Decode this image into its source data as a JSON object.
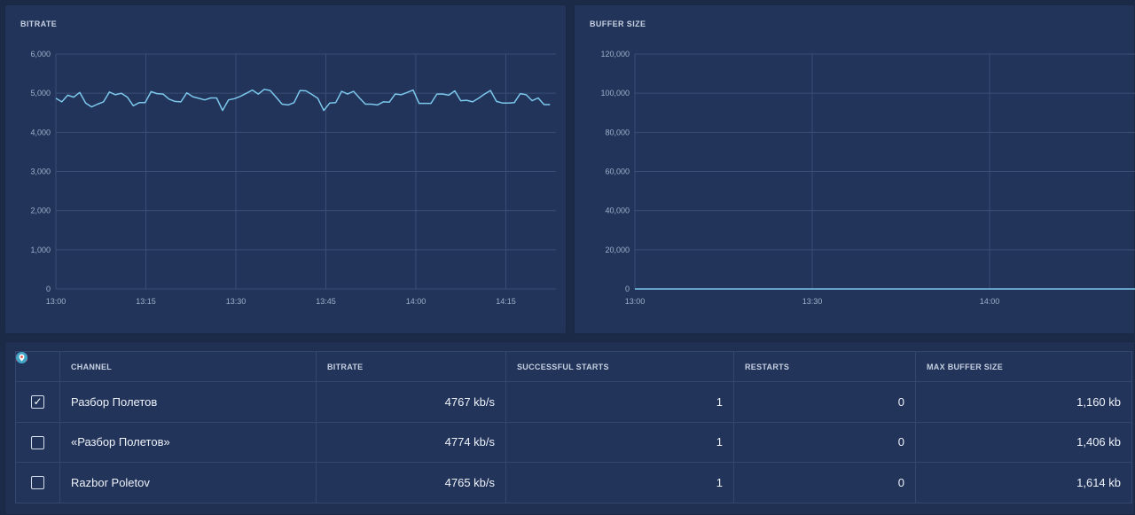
{
  "bitrate_panel": {
    "title": "BITRATE"
  },
  "buffer_panel": {
    "title": "BUFFER SIZE"
  },
  "chart_data": [
    {
      "type": "line",
      "title": "BITRATE",
      "ylim": [
        0,
        6000
      ],
      "yticks": [
        "0",
        "1,000",
        "2,000",
        "3,000",
        "4,000",
        "5,000",
        "6,000"
      ],
      "xticks": [
        "13:00",
        "13:15",
        "13:30",
        "13:45",
        "14:00",
        "14:15"
      ],
      "xlim": [
        0,
        84
      ],
      "series": [
        {
          "color": "#7cc7ec",
          "x": [
            0,
            1,
            2,
            3,
            4,
            5,
            6,
            7,
            8,
            9,
            10,
            11,
            12,
            13,
            14,
            15,
            16,
            17,
            18,
            19,
            20,
            21,
            22,
            23,
            24,
            25,
            26,
            27,
            28,
            29,
            30,
            31,
            32,
            33,
            34,
            35,
            36,
            37,
            38,
            39,
            40,
            41,
            42,
            43,
            44,
            45,
            46,
            47,
            48,
            49,
            50,
            51,
            52,
            53,
            54,
            55,
            56,
            57,
            58,
            59,
            60,
            61,
            62,
            63,
            64,
            65,
            66,
            67,
            68,
            69,
            70,
            71,
            72,
            73,
            74,
            75,
            76,
            77,
            78,
            79,
            80,
            81,
            82,
            83
          ],
          "values": [
            4870,
            4780,
            4950,
            4900,
            5020,
            4750,
            4650,
            4720,
            4780,
            5030,
            4960,
            5000,
            4900,
            4680,
            4760,
            4760,
            5040,
            4990,
            4980,
            4850,
            4790,
            4780,
            5010,
            4910,
            4870,
            4830,
            4880,
            4880,
            4560,
            4830,
            4860,
            4920,
            5000,
            5080,
            4980,
            5100,
            5070,
            4900,
            4720,
            4700,
            4760,
            5070,
            5060,
            4970,
            4870,
            4560,
            4750,
            4760,
            5050,
            4980,
            5050,
            4880,
            4720,
            4720,
            4700,
            4780,
            4770,
            4980,
            4960,
            5020,
            5080,
            4740,
            4740,
            4740,
            4980,
            4980,
            4950,
            5060,
            4810,
            4820,
            4780,
            4870,
            4980,
            5070,
            4790,
            4750,
            4750,
            4760,
            4990,
            4960,
            4810,
            4880,
            4710,
            4710
          ]
        }
      ]
    },
    {
      "type": "line",
      "title": "BUFFER SIZE",
      "ylim": [
        0,
        120000
      ],
      "yticks": [
        "0",
        "20,000",
        "40,000",
        "60,000",
        "80,000",
        "100,000",
        "120,000"
      ],
      "xticks": [
        "13:00",
        "13:30",
        "14:00"
      ],
      "xlim": [
        0,
        84
      ],
      "series": [
        {
          "color": "#7cc7ec",
          "x": [
            0,
            84
          ],
          "values": [
            0,
            0
          ]
        }
      ]
    }
  ],
  "table": {
    "headers": {
      "channel": "CHANNEL",
      "bitrate": "BITRATE",
      "starts": "SUCCESSFUL STARTS",
      "restarts": "RESTARTS",
      "buffer": "MAX BUFFER SIZE"
    },
    "rows": [
      {
        "checked": true,
        "check_mark": "✓",
        "icon": "youtube-icon",
        "channel": "Разбор Полетов",
        "bitrate": "4767 kb/s",
        "starts": "1",
        "restarts": "0",
        "buffer": "1,160 kb"
      },
      {
        "checked": false,
        "check_mark": "",
        "icon": "facebook-icon",
        "channel": "«Разбор Полетов»",
        "bitrate": "4774 kb/s",
        "starts": "1",
        "restarts": "0",
        "buffer": "1,406 kb"
      },
      {
        "checked": false,
        "check_mark": "",
        "icon": "periscope-icon",
        "channel": "Razbor Poletov",
        "bitrate": "4765 kb/s",
        "starts": "1",
        "restarts": "0",
        "buffer": "1,614 kb"
      }
    ]
  }
}
